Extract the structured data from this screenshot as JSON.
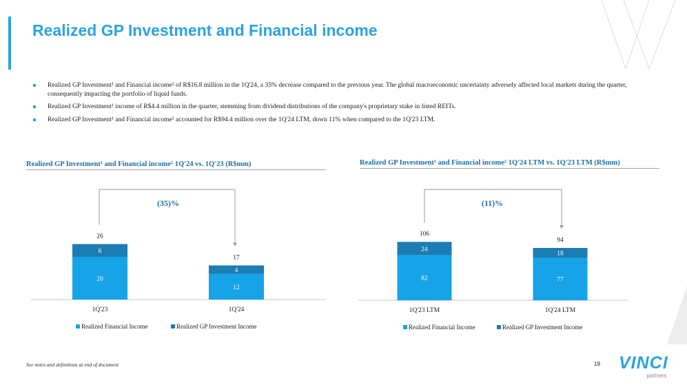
{
  "page": {
    "title": "Realized GP Investment and Financial income",
    "footnote": "See notes and definitions at end of document",
    "page_number": "19"
  },
  "bullets": [
    "Realized GP Investment¹ and Financial income² of R$16.8 million in the 1Q'24, a 35% decrease compared to the previous year. The global macroeconomic uncertainty adversely affected local markets during the quarter, consequently impacting the portfolio of liquid funds.",
    "Realized GP Investment¹ income of R$4.4 million in the quarter, stemming from dividend distributions of the company's proprietary stake in listed REITs.",
    "Realized GP Investment¹ and Financial income² accounted for R$94.4 million over the 1Q'24 LTM, down 11% when compared to the 1Q'23 LTM."
  ],
  "logo": {
    "text": "VINCI",
    "sub": "partners"
  },
  "colors": {
    "accent": "#2aa3e0",
    "financial": "#17a3e8",
    "gp": "#1b7db3",
    "title": "#1c6fa6"
  },
  "chart_data": [
    {
      "type": "bar",
      "stacked": true,
      "title": "Realized GP Investment¹ and Financial income² 1Q'24 vs. 1Q'23 (R$mm)",
      "categories": [
        "1Q'23",
        "1Q'24"
      ],
      "series": [
        {
          "name": "Realized Financial Income",
          "values": [
            20,
            12
          ]
        },
        {
          "name": "Realized GP Investment Income",
          "values": [
            6,
            4
          ]
        }
      ],
      "totals": [
        26,
        17
      ],
      "change_label": "(35)%",
      "ylim": [
        0,
        30
      ],
      "legend": "bottom"
    },
    {
      "type": "bar",
      "stacked": true,
      "title": "Realized GP Investment¹ and Financial income² 1Q'24 LTM vs. 1Q'23 LTM (R$mm)",
      "categories": [
        "1Q'23 LTM",
        "1Q'24 LTM"
      ],
      "series": [
        {
          "name": "Realized Financial Income",
          "values": [
            82,
            77
          ]
        },
        {
          "name": "Realized GP Investment Income",
          "values": [
            24,
            18
          ]
        }
      ],
      "totals": [
        106,
        94
      ],
      "change_label": "(11)%",
      "ylim": [
        0,
        120
      ],
      "legend": "bottom"
    }
  ]
}
